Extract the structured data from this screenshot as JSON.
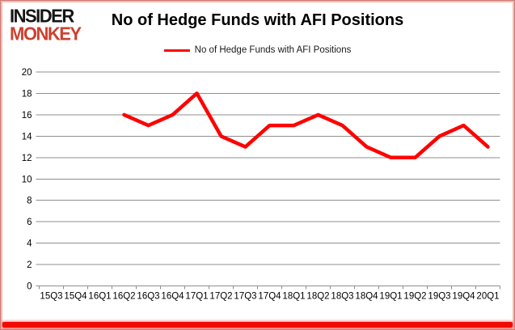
{
  "logo": {
    "line1": "INSIDER",
    "line2": "MONKEY"
  },
  "chart_data": {
    "type": "line",
    "title": "No of Hedge Funds with AFI Positions",
    "legend": "No of Hedge Funds with AFI Positions",
    "categories": [
      "15Q3",
      "15Q4",
      "16Q1",
      "16Q2",
      "16Q3",
      "16Q4",
      "17Q1",
      "17Q2",
      "17Q3",
      "17Q4",
      "18Q1",
      "18Q2",
      "18Q3",
      "18Q4",
      "19Q1",
      "19Q2",
      "19Q3",
      "19Q4",
      "20Q1"
    ],
    "series": [
      {
        "name": "No of Hedge Funds with AFI Positions",
        "values": [
          null,
          null,
          null,
          16,
          15,
          16,
          18,
          14,
          13,
          15,
          15,
          16,
          15,
          13,
          12,
          12,
          14,
          15,
          13
        ]
      }
    ],
    "ylim": [
      0,
      20
    ],
    "ytick_step": 2,
    "grid": "horizontal",
    "legend_position": "top-center",
    "line_color": "#ff0000",
    "grid_color": "#8f8f8f",
    "label_color": "#000000"
  }
}
